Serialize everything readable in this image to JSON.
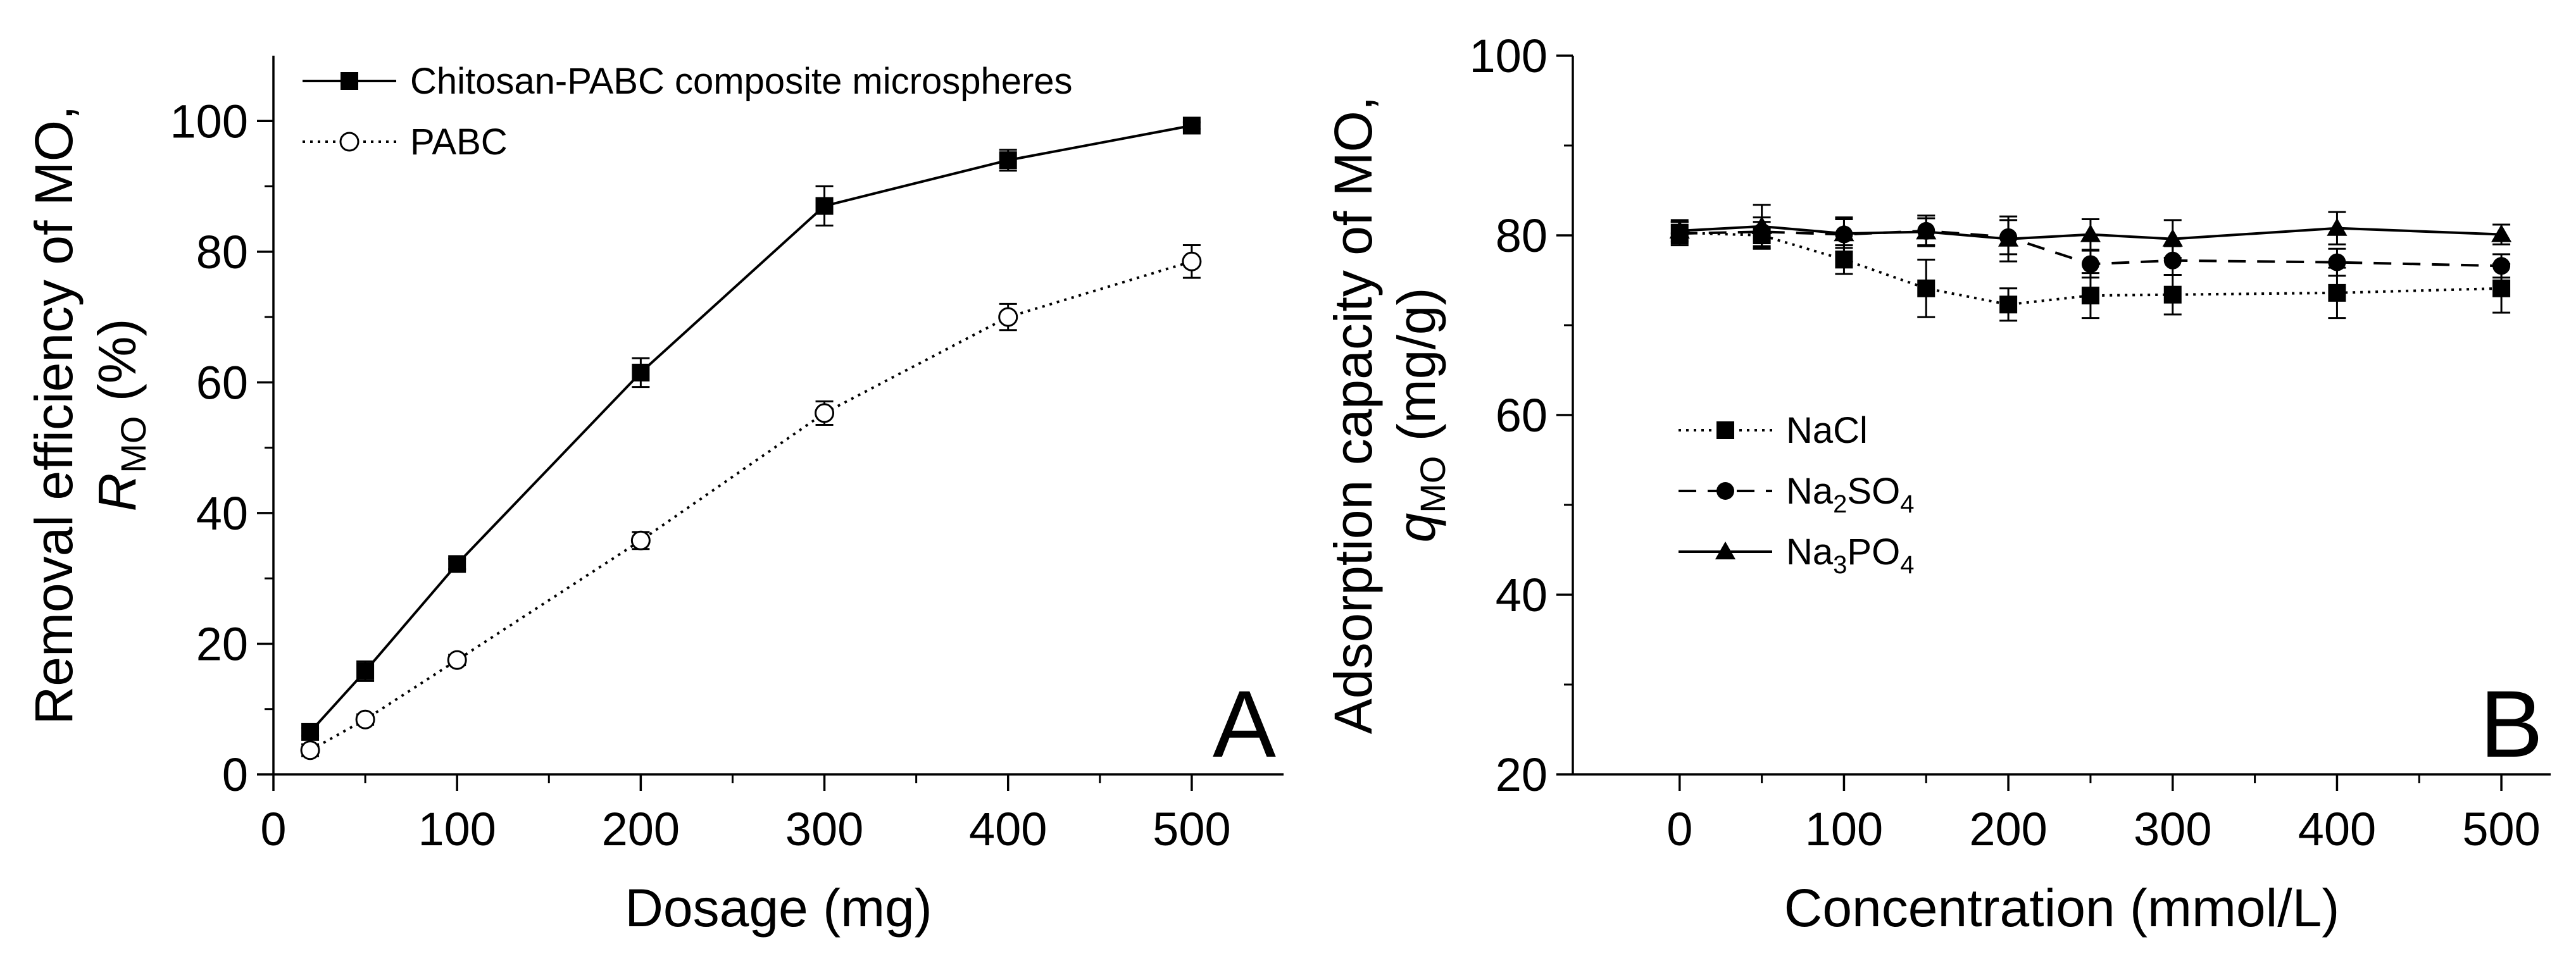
{
  "chart_data": [
    {
      "type": "line",
      "panel_letter": "A",
      "xlabel": "Dosage (mg)",
      "ylabel": "Removal efficiency of MO,",
      "ylabel_symbol": "R",
      "ylabel_subscript": "MO",
      "ylabel_unit": " (%)",
      "xlim": [
        0,
        550
      ],
      "ylim": [
        0,
        110
      ],
      "xticks": [
        0,
        100,
        200,
        300,
        400,
        500
      ],
      "yticks": [
        0,
        20,
        40,
        60,
        80,
        100
      ],
      "grid": false,
      "legend_position": "top-left",
      "series": [
        {
          "name": "Chitosan-PABC composite microspheres",
          "marker": "filled-square",
          "line_style": "solid",
          "x": [
            20,
            50,
            100,
            200,
            300,
            400,
            500
          ],
          "y": [
            6.5,
            15.8,
            32.2,
            61.5,
            87.0,
            94.0,
            99.3
          ],
          "error": [
            0.6,
            1.5,
            0.8,
            2.2,
            3.0,
            1.6,
            0.5
          ]
        },
        {
          "name": "PABC",
          "marker": "open-circle",
          "line_style": "dotted",
          "x": [
            20,
            50,
            100,
            200,
            300,
            400,
            500
          ],
          "y": [
            3.7,
            8.4,
            17.5,
            35.8,
            55.3,
            70.0,
            78.5
          ],
          "error": [
            0.9,
            0.8,
            0.8,
            1.3,
            1.8,
            2.0,
            2.5
          ]
        }
      ]
    },
    {
      "type": "line",
      "panel_letter": "B",
      "xlabel": "Concentration (mmol/L)",
      "ylabel": "Adsorption capacity of MO,",
      "ylabel_symbol": "q",
      "ylabel_subscript": "MO",
      "ylabel_unit": " (mg/g)",
      "xlim": [
        -65,
        530
      ],
      "ylim": [
        20,
        100
      ],
      "xticks": [
        0,
        100,
        200,
        300,
        400,
        500
      ],
      "yticks": [
        20,
        40,
        60,
        80,
        100
      ],
      "grid": false,
      "legend_position": "middle-left",
      "series": [
        {
          "name": "NaCl",
          "name_parts": [
            "NaCl"
          ],
          "marker": "filled-square",
          "line_style": "dotted",
          "x": [
            0,
            50,
            100,
            150,
            200,
            250,
            300,
            400,
            500
          ],
          "y": [
            80.3,
            80.0,
            77.3,
            74.1,
            72.3,
            73.3,
            73.4,
            73.6,
            74.1
          ],
          "error": [
            1.2,
            1.5,
            1.6,
            3.2,
            1.8,
            2.5,
            2.2,
            2.8,
            2.7
          ]
        },
        {
          "name": "Na2SO4",
          "name_parts": [
            "Na",
            "2",
            "SO",
            "4"
          ],
          "marker": "filled-circle",
          "line_style": "dashed",
          "x": [
            0,
            50,
            100,
            150,
            200,
            250,
            300,
            400,
            500
          ],
          "y": [
            80.2,
            80.4,
            80.1,
            80.5,
            79.8,
            76.8,
            77.2,
            77.0,
            76.6
          ],
          "error": [
            1.3,
            1.6,
            1.9,
            1.7,
            1.9,
            1.5,
            1.6,
            1.5,
            1.3
          ]
        },
        {
          "name": "Na3PO4",
          "name_parts": [
            "Na",
            "3",
            "PO",
            "4"
          ],
          "marker": "filled-triangle",
          "line_style": "solid",
          "x": [
            0,
            50,
            100,
            150,
            200,
            250,
            300,
            400,
            500
          ],
          "y": [
            80.5,
            81.0,
            80.2,
            80.4,
            79.6,
            80.1,
            79.6,
            80.8,
            80.1
          ],
          "error": [
            1.2,
            2.4,
            1.6,
            1.5,
            2.5,
            1.7,
            2.1,
            1.8,
            1.1
          ]
        }
      ]
    }
  ]
}
